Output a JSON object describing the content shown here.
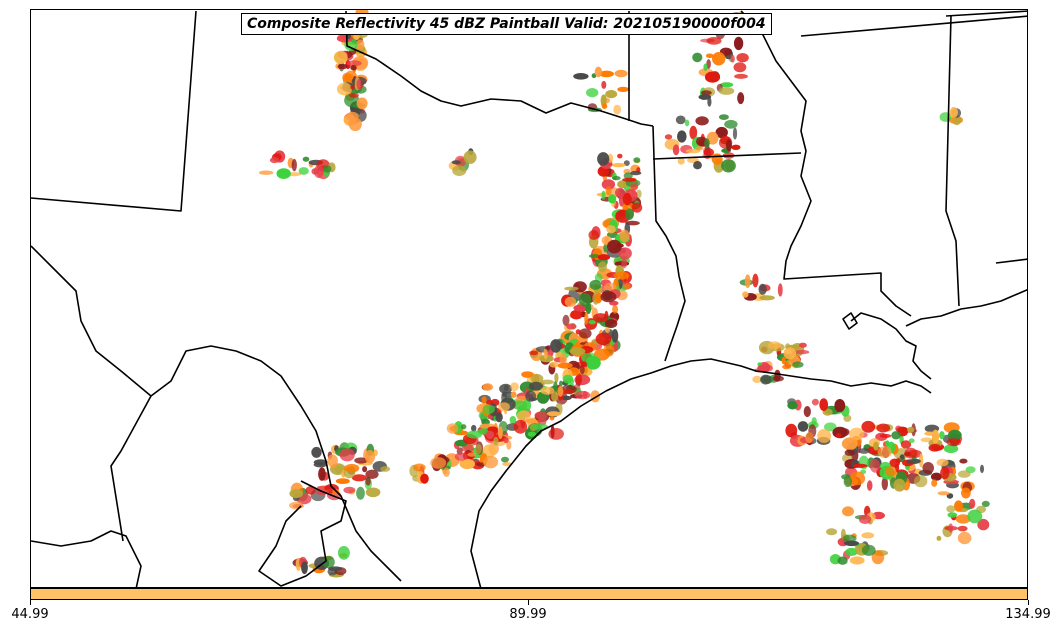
{
  "title": "Composite Reflectivity 45 dBZ Paintball Valid: 202105190000f004",
  "colorbar": {
    "color": "#ffc266",
    "ticks": [
      "44.99",
      "89.99",
      "134.99"
    ]
  },
  "paint_colors": [
    "#e0180e",
    "#ff7a00",
    "#8b1a1a",
    "#2e8b2e",
    "#3cd13c",
    "#b8a637",
    "#e8404a",
    "#ff9a3c",
    "#4a4a4a",
    "#ffb347"
  ]
}
